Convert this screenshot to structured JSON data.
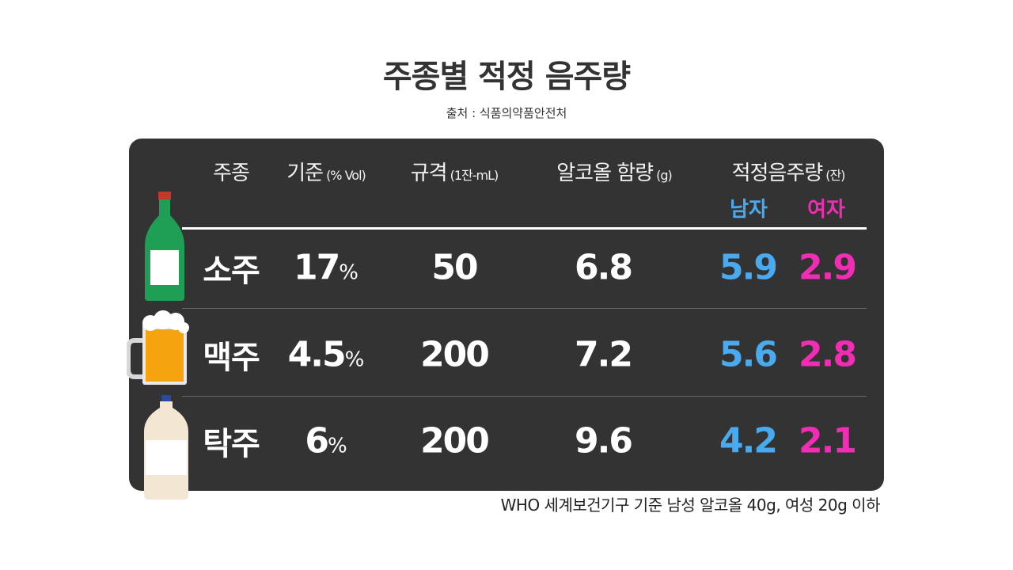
{
  "title": "주종별 적정 음주량",
  "source": "출처 : 식품의약품안전처",
  "table": {
    "headers": [
      {
        "label": "주종"
      },
      {
        "label": "기준",
        "unit": "(% Vol)"
      },
      {
        "label": "규격",
        "unit": "(1잔-mL)"
      },
      {
        "label": "알코올 함량",
        "unit": "(g)"
      },
      {
        "label": "적정음주량",
        "unit": "(잔)"
      }
    ],
    "subheaders": [
      "남자",
      "여자"
    ],
    "rows": [
      {
        "name": "소주",
        "abv": "17",
        "abv_unit": "%",
        "size": "50",
        "alcohol": "6.8",
        "men": "5.9",
        "women": "2.9"
      },
      {
        "name": "맥주",
        "abv": "4.5",
        "abv_unit": "%",
        "size": "200",
        "alcohol": "7.2",
        "men": "5.6",
        "women": "2.8"
      },
      {
        "name": "탁주",
        "abv": "6",
        "abv_unit": "%",
        "size": "200",
        "alcohol": "9.6",
        "men": "4.2",
        "women": "2.1"
      }
    ]
  },
  "footnote": "WHO 세계보건기구 기준 남성 알코올 40g, 여성 20g 이하"
}
